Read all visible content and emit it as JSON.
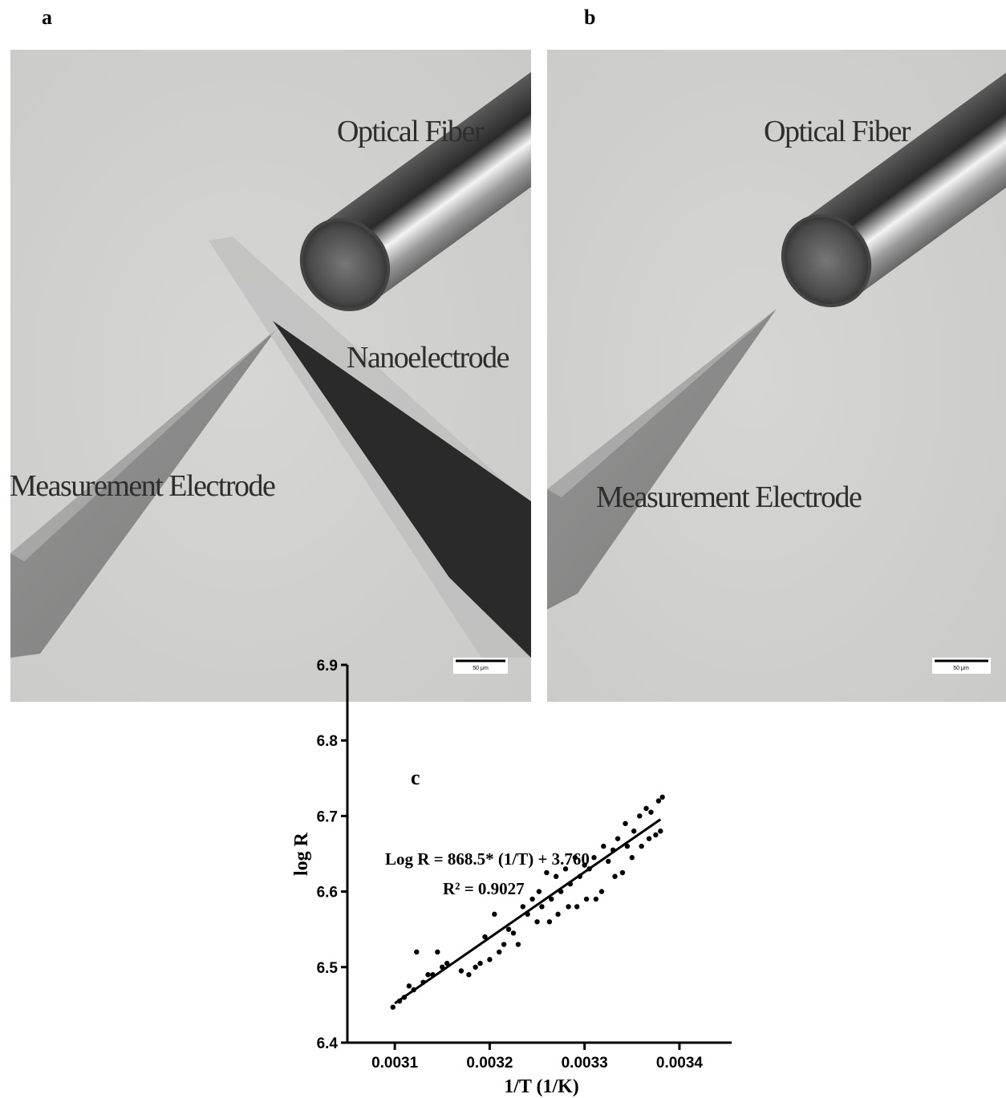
{
  "panels": [
    {
      "letter": "a",
      "labels": [
        "Optical Fiber",
        "Nanoelectrode",
        "Measurement Electrode"
      ],
      "scale_bar": "50 μm"
    },
    {
      "letter": "b",
      "labels": [
        "Optical Fiber",
        "Measurement Electrode"
      ],
      "scale_bar": "50 μm"
    }
  ],
  "chart_data": {
    "type": "scatter",
    "title": "c",
    "x_label": "1/T (1/K)",
    "y_label": "log R",
    "annotations": [
      "Log R = 868.5* (1/T) + 3.760",
      "R² = 0.9027"
    ],
    "color": "#000000",
    "x": [
      0.003098,
      0.003105,
      0.00311,
      0.003115,
      0.00312,
      0.003123,
      0.00313,
      0.003135,
      0.00314,
      0.003145,
      0.00315,
      0.003155,
      0.00317,
      0.003178,
      0.003185,
      0.00319,
      0.003195,
      0.0032,
      0.003205,
      0.00321,
      0.003215,
      0.00322,
      0.003225,
      0.00323,
      0.003235,
      0.00324,
      0.003245,
      0.00325,
      0.003252,
      0.003255,
      0.00326,
      0.003263,
      0.003265,
      0.00327,
      0.003272,
      0.003275,
      0.00328,
      0.003283,
      0.003285,
      0.00329,
      0.003292,
      0.003295,
      0.0033,
      0.003302,
      0.003305,
      0.00331,
      0.003312,
      0.003318,
      0.00332,
      0.003325,
      0.00333,
      0.003332,
      0.003335,
      0.00334,
      0.003343,
      0.003345,
      0.00335,
      0.003352,
      0.003358,
      0.00336,
      0.003365,
      0.003368,
      0.00337,
      0.003375,
      0.003378,
      0.00338,
      0.003382
    ],
    "values": [
      6.447,
      6.455,
      6.46,
      6.475,
      6.47,
      6.52,
      6.48,
      6.49,
      6.49,
      6.52,
      6.5,
      6.505,
      6.495,
      6.49,
      6.5,
      6.505,
      6.54,
      6.51,
      6.57,
      6.52,
      6.53,
      6.55,
      6.545,
      6.53,
      6.58,
      6.57,
      6.59,
      6.56,
      6.6,
      6.58,
      6.625,
      6.56,
      6.59,
      6.62,
      6.57,
      6.6,
      6.63,
      6.58,
      6.61,
      6.645,
      6.58,
      6.62,
      6.635,
      6.59,
      6.63,
      6.645,
      6.59,
      6.6,
      6.66,
      6.64,
      6.655,
      6.62,
      6.67,
      6.625,
      6.69,
      6.66,
      6.645,
      6.68,
      6.7,
      6.66,
      6.71,
      6.67,
      6.705,
      6.675,
      6.72,
      6.68,
      6.725
    ],
    "fit": {
      "x": [
        0.0031,
        0.00338
      ],
      "y": [
        6.452,
        6.6955
      ]
    },
    "xlim": [
      0.00305,
      0.003455
    ],
    "ylim": [
      6.4,
      6.9
    ],
    "xticks": [
      0.0031,
      0.0032,
      0.0033,
      0.0034
    ],
    "yticks": [
      6.4,
      6.5,
      6.6,
      6.7,
      6.8,
      6.9
    ]
  }
}
